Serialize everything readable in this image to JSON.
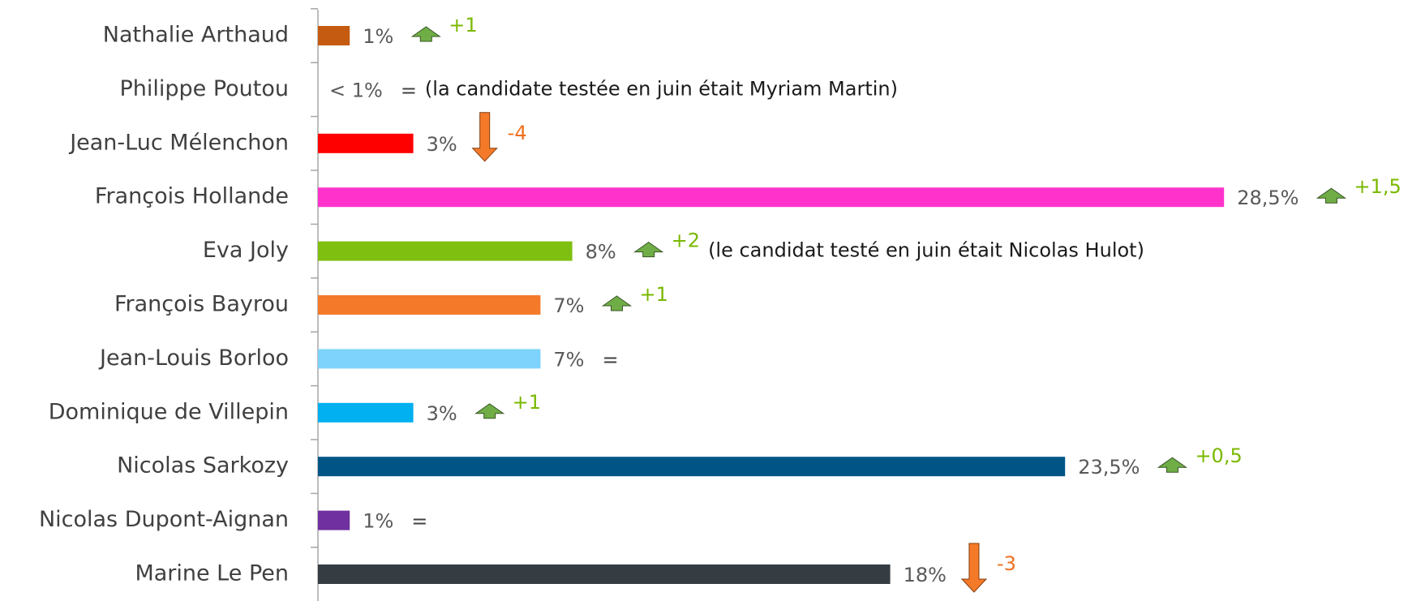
{
  "chart_data": {
    "type": "bar",
    "orientation": "horizontal",
    "categories": [
      "Nathalie Arthaud",
      "Philippe Poutou",
      "Jean-Luc Mélenchon",
      "François Hollande",
      "Eva Joly",
      "François Bayrou",
      "Jean-Louis Borloo",
      "Dominique de Villepin",
      "Nicolas Sarkozy",
      "Nicolas Dupont-Aignan",
      "Marine Le Pen"
    ],
    "values": [
      1,
      null,
      3,
      28.5,
      8,
      7,
      7,
      3,
      23.5,
      1,
      18
    ],
    "value_labels": [
      "1%",
      "< 1%",
      "3%",
      "28,5%",
      "8%",
      "7%",
      "7%",
      "3%",
      "23,5%",
      "1%",
      "18%"
    ],
    "colors": [
      "#c55a11",
      "#000000",
      "#ff0000",
      "#ff33cc",
      "#7fbf10",
      "#f47a2a",
      "#7dd3fb",
      "#00b0f0",
      "#005586",
      "#7030a0",
      "#353c42"
    ],
    "changes": [
      1,
      0,
      -4,
      1.5,
      2,
      1,
      0,
      1,
      0.5,
      0,
      -3
    ],
    "change_labels": [
      "+1",
      "=",
      "-4",
      "+1,5",
      "+2",
      "+1",
      "=",
      "+1",
      "+0,5",
      "=",
      "-3"
    ],
    "notes": [
      null,
      "(la candidate testée en juin était Myriam Martin)",
      null,
      null,
      "(le candidat testé en juin était Nicolas Hulot)",
      null,
      null,
      null,
      null,
      null,
      null
    ],
    "xlim": [
      0,
      30
    ]
  }
}
